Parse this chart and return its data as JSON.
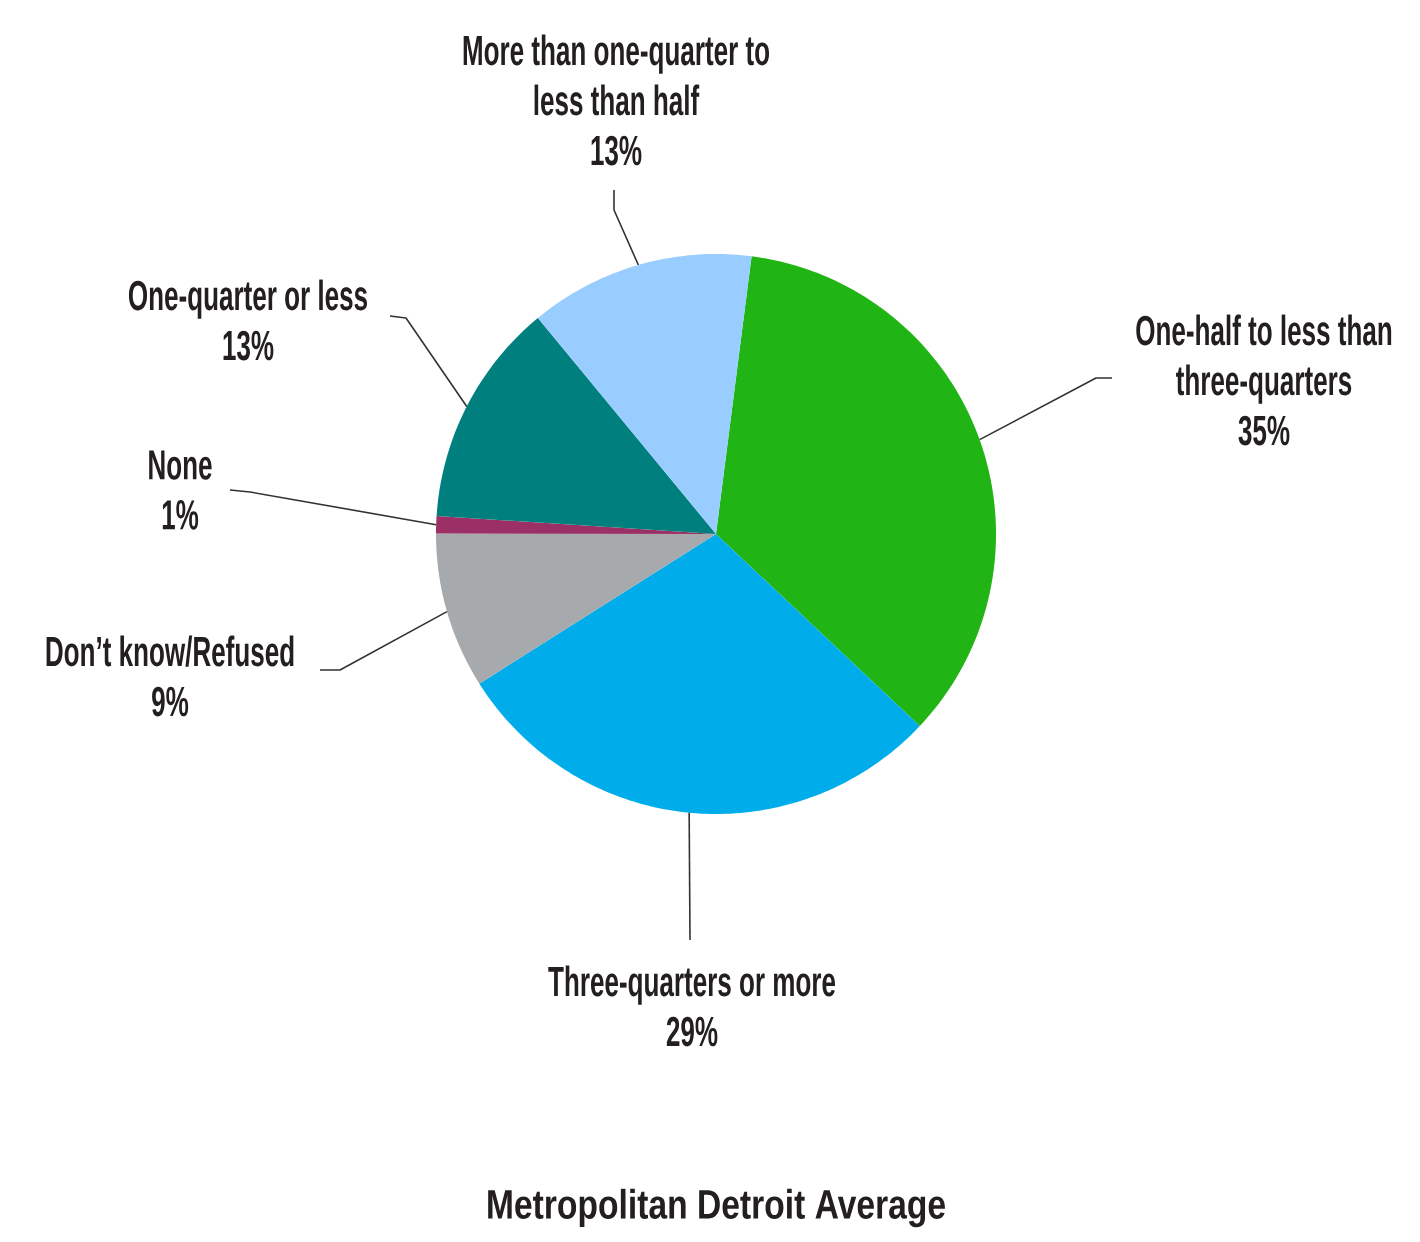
{
  "chart_data": {
    "type": "pie",
    "title": "Metropolitan Detroit Average",
    "categories": [
      "One-half to less than three-quarters",
      "Three-quarters or more",
      "Don’t know/Refused",
      "None",
      "One-quarter or less",
      "More than one-quarter to less than half"
    ],
    "values": [
      35,
      29,
      9,
      1,
      13,
      13
    ],
    "value_labels": [
      "35%",
      "29%",
      "9%",
      "1%",
      "13%",
      "13%"
    ],
    "colors": [
      "#20b414",
      "#00adea",
      "#a6aaac",
      "#9b3066",
      "#007f7f",
      "#99ccff"
    ]
  }
}
